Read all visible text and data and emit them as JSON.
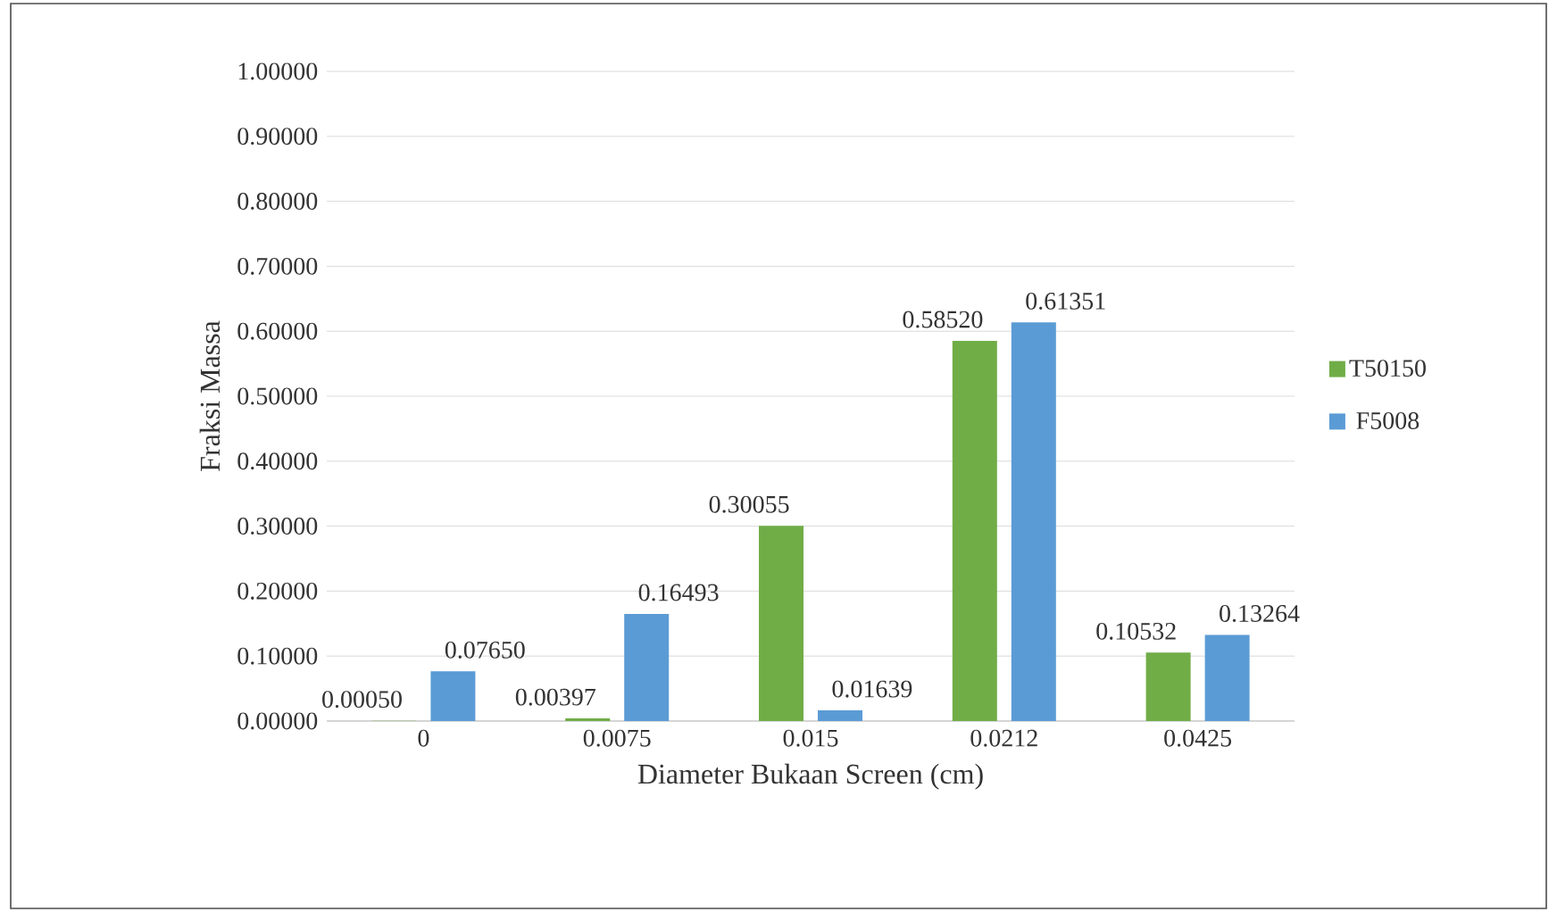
{
  "chart_data": {
    "type": "bar",
    "xlabel": "Diameter Bukaan Screen (cm)",
    "ylabel": "Fraksi Massa",
    "categories": [
      "0",
      "0.0075",
      "0.015",
      "0.0212",
      "0.0425"
    ],
    "series": [
      {
        "name": "T50150",
        "color": "#70ad47",
        "values": [
          0.0005,
          0.00397,
          0.30055,
          0.5852,
          0.10532
        ],
        "value_labels": [
          "0.00050",
          "0.00397",
          "0.30055",
          "0.58520",
          "0.10532"
        ]
      },
      {
        "name": "F5008",
        "color": "#5b9bd5",
        "values": [
          0.0765,
          0.16493,
          0.01639,
          0.61351,
          0.13264
        ],
        "value_labels": [
          "0.07650",
          "0.16493",
          "0.01639",
          "0.61351",
          "0.13264"
        ]
      }
    ],
    "ylim": [
      0,
      1
    ],
    "yticks": [
      {
        "value": 0,
        "label": "0.00000"
      },
      {
        "value": 0.1,
        "label": "0.10000"
      },
      {
        "value": 0.2,
        "label": "0.20000"
      },
      {
        "value": 0.3,
        "label": "0.30000"
      },
      {
        "value": 0.4,
        "label": "0.40000"
      },
      {
        "value": 0.5,
        "label": "0.50000"
      },
      {
        "value": 0.6,
        "label": "0.60000"
      },
      {
        "value": 0.7,
        "label": "0.70000"
      },
      {
        "value": 0.8,
        "label": "0.80000"
      },
      {
        "value": 0.9,
        "label": "0.90000"
      },
      {
        "value": 1,
        "label": "1.00000"
      }
    ],
    "grid": "y",
    "legend": "right"
  }
}
